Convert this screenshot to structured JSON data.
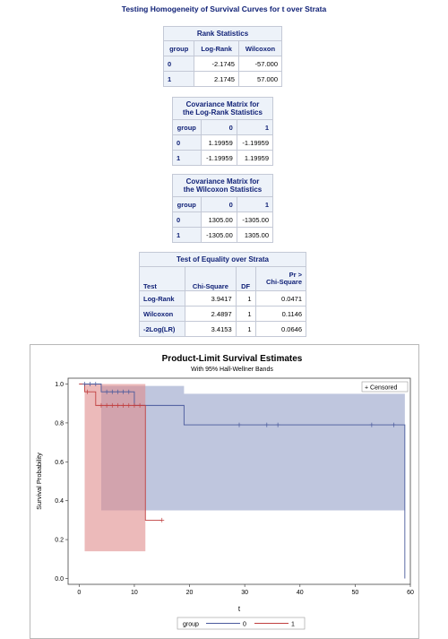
{
  "page_title": "Testing Homogeneity of Survival Curves for t over Strata",
  "rank_statistics": {
    "caption": "Rank Statistics",
    "headers": [
      "group",
      "Log-Rank",
      "Wilcoxon"
    ],
    "rows": [
      [
        "0",
        "-2.1745",
        "-57.000"
      ],
      [
        "1",
        "2.1745",
        "57.000"
      ]
    ]
  },
  "cov_logrank": {
    "caption": [
      "Covariance Matrix for",
      "the Log-Rank Statistics"
    ],
    "headers": [
      "group",
      "0",
      "1"
    ],
    "rows": [
      [
        "0",
        "1.19959",
        "-1.19959"
      ],
      [
        "1",
        "-1.19959",
        "1.19959"
      ]
    ]
  },
  "cov_wilcoxon": {
    "caption": [
      "Covariance Matrix for",
      "the Wilcoxon Statistics"
    ],
    "headers": [
      "group",
      "0",
      "1"
    ],
    "rows": [
      [
        "0",
        "1305.00",
        "-1305.00"
      ],
      [
        "1",
        "-1305.00",
        "1305.00"
      ]
    ]
  },
  "equality_test": {
    "caption": "Test of Equality over Strata",
    "headers": [
      "Test",
      "Chi-Square",
      "DF",
      "Pr >",
      "Chi-Square"
    ],
    "rows": [
      [
        "Log-Rank",
        "3.9417",
        "1",
        "0.0471"
      ],
      [
        "Wilcoxon",
        "2.4897",
        "1",
        "0.1146"
      ],
      [
        "-2Log(LR)",
        "3.4153",
        "1",
        "0.0646"
      ]
    ]
  },
  "chart_data": {
    "type": "line",
    "title": "Product-Limit Survival Estimates",
    "subtitle": "With 95% Hall-Wellner Bands",
    "xlabel": "t",
    "ylabel": "Survival Probability",
    "xlim": [
      -2,
      60
    ],
    "ylim": [
      -0.03,
      1.03
    ],
    "x_ticks": [
      "0",
      "10",
      "20",
      "30",
      "40",
      "50",
      "60"
    ],
    "y_ticks": [
      "0.0",
      "0.2",
      "0.4",
      "0.6",
      "0.8",
      "1.0"
    ],
    "legend_title": "group",
    "censored_label": "+ Censored",
    "series": [
      {
        "name": "0",
        "color": "#4a5a9c",
        "band_color": "#8a97c2",
        "steps": [
          [
            0,
            1.0
          ],
          [
            4,
            0.96
          ],
          [
            10,
            0.89
          ],
          [
            19,
            0.79
          ],
          [
            59,
            0.79
          ],
          [
            59,
            0.0
          ]
        ],
        "band": [
          [
            4,
            0.35,
            0.99
          ],
          [
            10,
            0.35,
            0.99
          ],
          [
            19,
            0.35,
            0.95
          ],
          [
            59,
            0.35,
            0.95
          ]
        ],
        "censored": [
          [
            1,
            1.0
          ],
          [
            2,
            1.0
          ],
          [
            3,
            1.0
          ],
          [
            5,
            0.96
          ],
          [
            6,
            0.96
          ],
          [
            7,
            0.96
          ],
          [
            8,
            0.96
          ],
          [
            9,
            0.96
          ],
          [
            29,
            0.79
          ],
          [
            34,
            0.79
          ],
          [
            36,
            0.79
          ],
          [
            53,
            0.79
          ],
          [
            57,
            0.79
          ]
        ]
      },
      {
        "name": "1",
        "color": "#c04040",
        "band_color": "#e08c8c",
        "steps": [
          [
            0,
            1.0
          ],
          [
            1,
            0.96
          ],
          [
            3,
            0.89
          ],
          [
            12,
            0.89
          ],
          [
            12,
            0.3
          ],
          [
            15,
            0.3
          ]
        ],
        "band": [
          [
            1,
            0.14,
            1.0
          ],
          [
            12,
            0.14,
            1.0
          ]
        ],
        "censored": [
          [
            1.5,
            0.96
          ],
          [
            4,
            0.89
          ],
          [
            5,
            0.89
          ],
          [
            6,
            0.89
          ],
          [
            7,
            0.89
          ],
          [
            8,
            0.89
          ],
          [
            9,
            0.89
          ],
          [
            10,
            0.89
          ],
          [
            11,
            0.89
          ],
          [
            15,
            0.3
          ]
        ]
      }
    ]
  }
}
